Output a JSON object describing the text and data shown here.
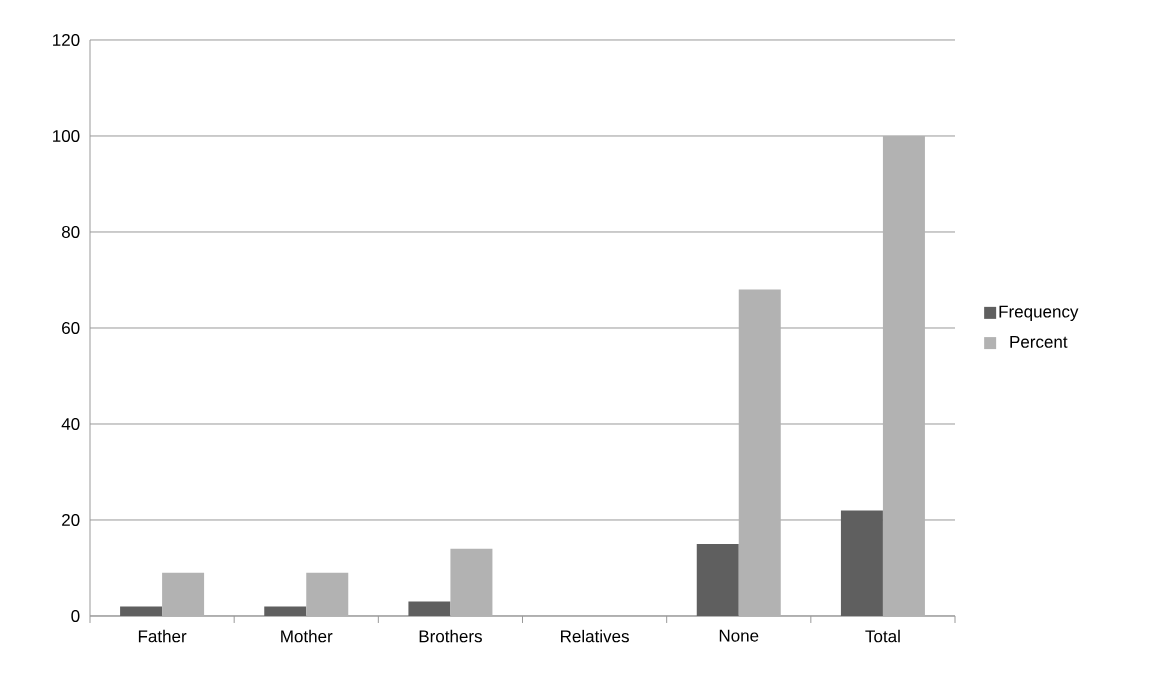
{
  "chart_data": {
    "type": "bar",
    "categories": [
      "Father",
      "Mother",
      "Brothers",
      "Relatives",
      "None",
      "Total"
    ],
    "series": [
      {
        "name": "Frequency",
        "color": "#5f5f5f",
        "values": [
          2,
          2,
          3,
          0,
          15,
          22
        ]
      },
      {
        "name": "Percent",
        "color": "#b2b2b2",
        "values": [
          9,
          9,
          14,
          0,
          68,
          100
        ]
      }
    ],
    "ylim": [
      0,
      120
    ],
    "yticks": [
      0,
      20,
      40,
      60,
      80,
      100,
      120
    ],
    "grid": "y",
    "legend": "right"
  }
}
